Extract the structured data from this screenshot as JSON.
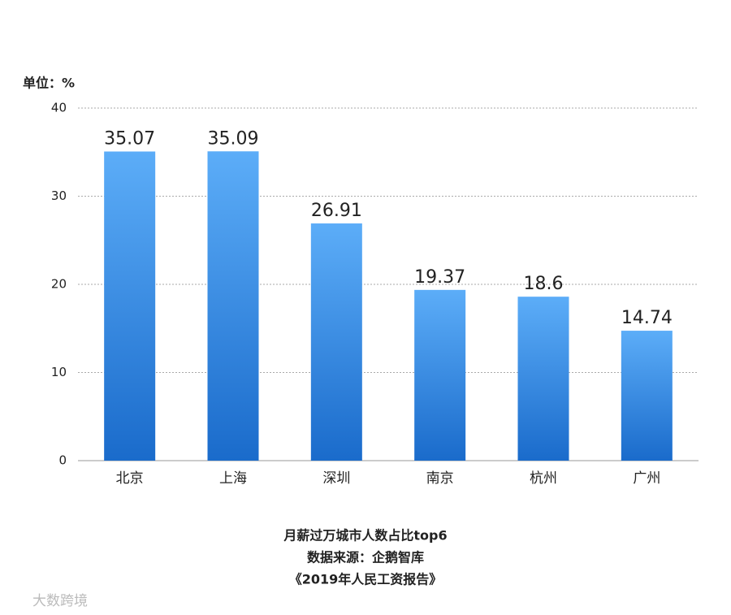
{
  "chart_data": {
    "type": "bar",
    "y_label": "单位：%",
    "categories": [
      "北京",
      "上海",
      "深圳",
      "南京",
      "杭州",
      "广州"
    ],
    "values": [
      35.07,
      35.09,
      26.91,
      19.37,
      18.6,
      14.74
    ],
    "gradient": [
      "#5cadf8",
      "#1a6bcb"
    ],
    "ylim": [
      0,
      40
    ],
    "yticks": [
      0,
      10,
      20,
      30,
      40
    ],
    "grid": true,
    "footer": [
      "月薪过万城市人数占比top6",
      "数据来源：企鹅智库",
      "《2019年人民工资报告》"
    ],
    "watermark": "大数跨境"
  }
}
